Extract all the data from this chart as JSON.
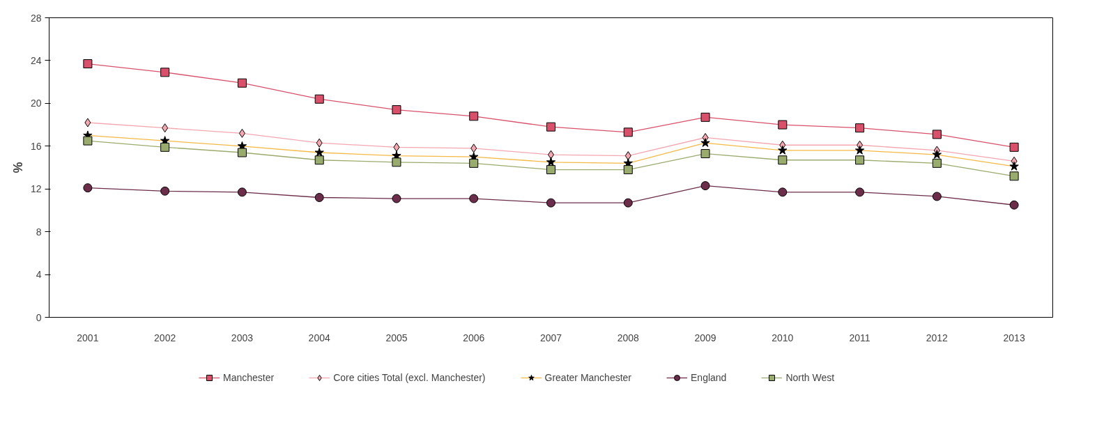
{
  "chart_data": {
    "type": "line",
    "ylabel": "%",
    "categories": [
      "2001",
      "2002",
      "2003",
      "2004",
      "2005",
      "2006",
      "2007",
      "2008",
      "2009",
      "2010",
      "2011",
      "2012",
      "2013"
    ],
    "ylim": [
      0,
      28
    ],
    "yticks": [
      0,
      4,
      8,
      12,
      16,
      20,
      24,
      28
    ],
    "grid": false,
    "legend": "bottom",
    "series": [
      {
        "name": "Manchester",
        "color": "#d9506a",
        "marker": "square",
        "values": [
          23.7,
          22.9,
          21.9,
          20.4,
          19.4,
          18.8,
          17.8,
          17.3,
          18.7,
          18.0,
          17.7,
          17.1,
          15.9
        ]
      },
      {
        "name": "Core cities Total (excl. Manchester)",
        "color": "#f4a7b0",
        "marker": "diamond",
        "values": [
          18.2,
          17.7,
          17.2,
          16.3,
          15.9,
          15.8,
          15.2,
          15.1,
          16.8,
          16.1,
          16.1,
          15.6,
          14.6
        ]
      },
      {
        "name": "Greater Manchester",
        "color": "#f5b945",
        "marker": "star",
        "values": [
          17.0,
          16.5,
          16.0,
          15.4,
          15.1,
          15.0,
          14.5,
          14.4,
          16.3,
          15.6,
          15.6,
          15.2,
          14.1
        ]
      },
      {
        "name": "England",
        "color": "#6b2d4a",
        "marker": "circle",
        "values": [
          12.1,
          11.8,
          11.7,
          11.2,
          11.1,
          11.1,
          10.7,
          10.7,
          12.3,
          11.7,
          11.7,
          11.3,
          10.5
        ]
      },
      {
        "name": "North West",
        "color": "#9aab6e",
        "marker": "square",
        "values": [
          16.5,
          15.9,
          15.4,
          14.7,
          14.5,
          14.4,
          13.8,
          13.8,
          15.3,
          14.7,
          14.7,
          14.4,
          13.2
        ]
      }
    ]
  }
}
